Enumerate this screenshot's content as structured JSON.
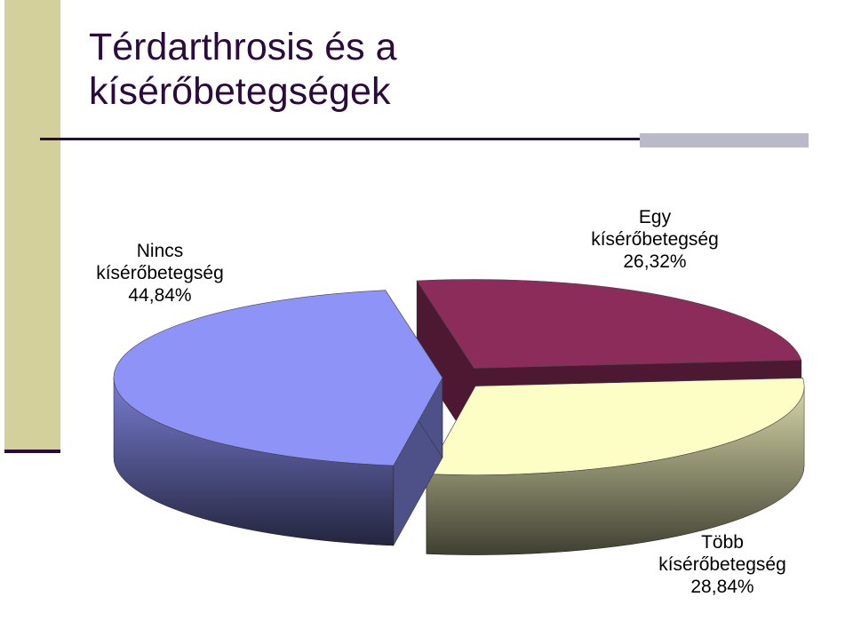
{
  "title": "Térdarthrosis és a kísérőbetegségek",
  "chart_data": {
    "type": "pie",
    "categories": [
      "Egy kísérőbetegség",
      "Több kísérőbetegség",
      "Nincs kísérőbetegség"
    ],
    "values": [
      26.32,
      28.84,
      44.84
    ],
    "value_labels": [
      "26,32%",
      "28,84%",
      "44,84%"
    ],
    "colors": [
      "#8c2c5a",
      "#fdfdc6",
      "#8e93f7"
    ]
  }
}
